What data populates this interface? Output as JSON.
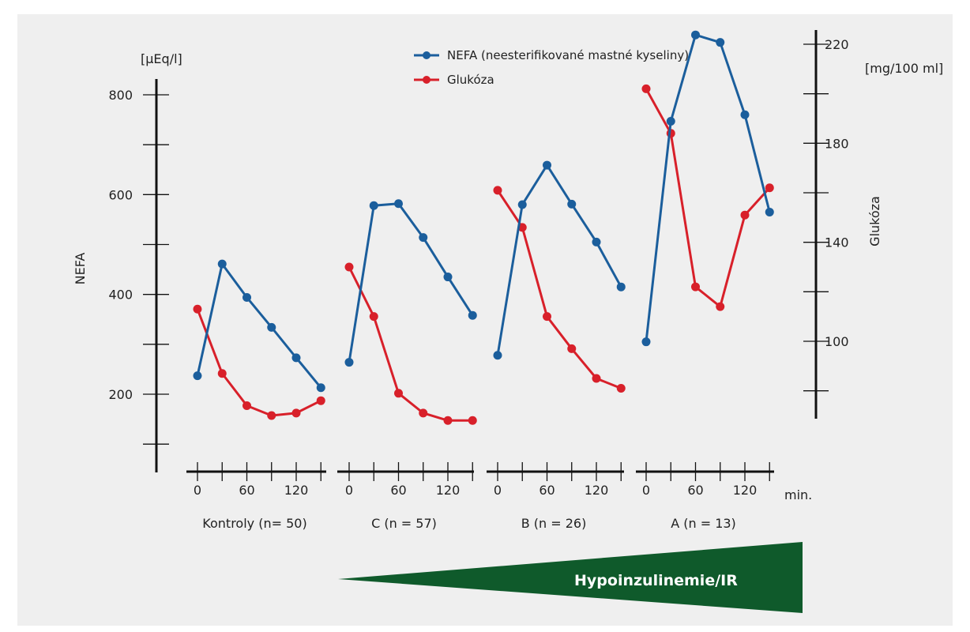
{
  "chart_data": {
    "type": "line",
    "legend": {
      "placement": "top-center",
      "entries": [
        {
          "key": "nefa",
          "label": "NEFA (neesterifikované mastné kyseliny)",
          "color": "#1b5e9c"
        },
        {
          "key": "glukoza",
          "label": "Glukóza",
          "color": "#d8202a"
        }
      ]
    },
    "y_left": {
      "label": "NEFA",
      "unit": "[µEq/l]",
      "ticks": [
        200,
        400,
        600,
        800
      ],
      "range": [
        50,
        850
      ]
    },
    "y_right": {
      "label": "Glukóza",
      "unit": "[mg/100 ml]",
      "ticks": [
        100,
        140,
        180,
        220
      ],
      "range": [
        70,
        225
      ]
    },
    "x": {
      "unit_label": "min.",
      "tick_labels": [
        "0",
        "60",
        "120"
      ],
      "ticks": [
        0,
        60,
        120
      ],
      "points": [
        0,
        30,
        60,
        90,
        120,
        150
      ],
      "range": [
        -10,
        160
      ]
    },
    "groups": [
      {
        "label": "Kontroly (n= 50)",
        "nefa": [
          237,
          461,
          394,
          334,
          273,
          213
        ],
        "glukoza": [
          113,
          87,
          74,
          70,
          71,
          76
        ]
      },
      {
        "label": "C (n = 57)",
        "nefa": [
          264,
          578,
          582,
          514,
          435,
          358
        ],
        "glukoza": [
          130,
          110,
          79,
          71,
          68,
          68
        ]
      },
      {
        "label": "B (n = 26)",
        "nefa": [
          278,
          580,
          659,
          581,
          505,
          415
        ],
        "glukoza": [
          161,
          146,
          110,
          97,
          85,
          81
        ]
      },
      {
        "label": "A (n = 13)",
        "nefa": [
          305,
          747,
          920,
          905,
          760,
          565
        ],
        "glukoza": [
          202,
          184,
          122,
          114,
          151,
          162
        ]
      }
    ],
    "grid": false
  },
  "banner": {
    "label": "Hypoinzulinemie/IR",
    "color": "#0f5a2b"
  }
}
